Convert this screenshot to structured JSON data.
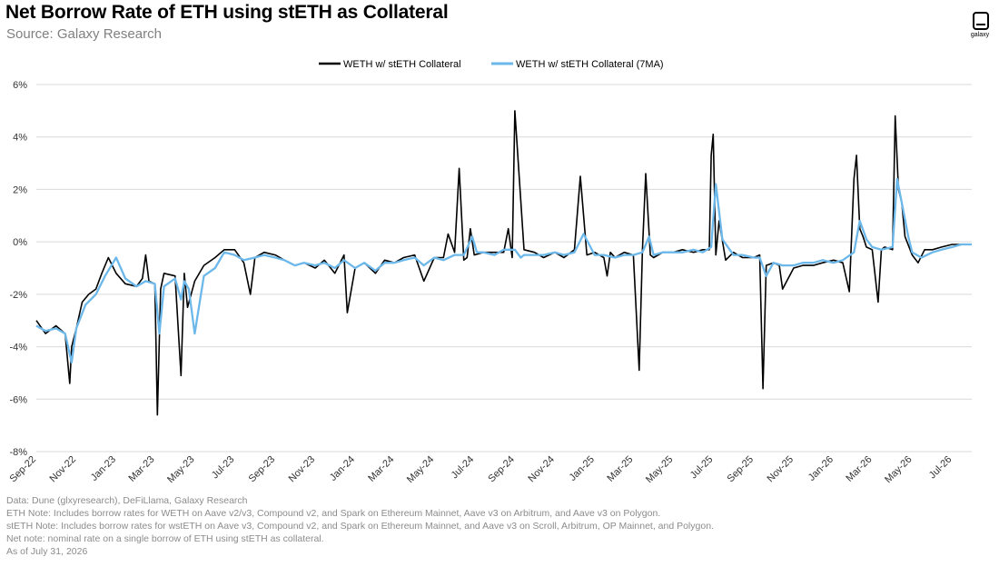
{
  "header": {
    "title": "Net Borrow Rate of ETH using stETH as Collateral",
    "subtitle": "Source: Galaxy Research",
    "logo_text": "galaxy"
  },
  "notes": [
    "Data: Dune (glxyresearch), DeFiLlama, Galaxy Research",
    "ETH Note: Includes borrow rates for WETH on Aave v2/v3, Compound v2, and Spark on Ethereum Mainnet, Aave v3 on Arbitrum, and Aave v3 on Polygon.",
    "stETH Note: Includes  borrow rates for wstETH on Aave v3, Compound v2, and  Spark on Ethereum Mainnet, and Aave v3 on Scroll, Arbitrum, OP Mainnet, and Polygon.",
    "Net note: nominal rate on a single borrow of ETH using stETH as collateral.",
    "As of July 31, 2026"
  ],
  "colors": {
    "series_raw": "#000000",
    "series_ma": "#6cb8ea",
    "gridline": "#d9d9d9",
    "axis_text": "#333333"
  },
  "chart_data": {
    "type": "line",
    "title": "Net Borrow Rate of ETH using stETH as Collateral",
    "xlabel": "",
    "ylabel": "",
    "ylim": [
      -8,
      6
    ],
    "y_ticks": [
      "6%",
      "4%",
      "2%",
      "0%",
      "-2%",
      "-4%",
      "-6%",
      "-8%"
    ],
    "y_tick_values": [
      6,
      4,
      2,
      0,
      -2,
      -4,
      -6,
      -8
    ],
    "x_range": [
      "2022-09-01",
      "2026-07-31"
    ],
    "x_ticks": [
      "Sep-22",
      "Nov-22",
      "Jan-23",
      "Mar-23",
      "May-23",
      "Jul-23",
      "Sep-23",
      "Nov-23",
      "Jan-24",
      "Mar-24",
      "May-24",
      "Jul-24",
      "Sep-24",
      "Nov-24",
      "Jan-25",
      "Mar-25",
      "May-25",
      "Jul-25",
      "Sep-25",
      "Nov-25",
      "Jan-26",
      "Mar-26",
      "May-26",
      "Jul-26"
    ],
    "x_tick_dates": [
      "2022-09-01",
      "2022-11-01",
      "2023-01-01",
      "2023-03-01",
      "2023-05-01",
      "2023-07-01",
      "2023-09-01",
      "2023-11-01",
      "2024-01-01",
      "2024-03-01",
      "2024-05-01",
      "2024-07-01",
      "2024-09-01",
      "2024-11-01",
      "2025-01-01",
      "2025-03-01",
      "2025-05-01",
      "2025-07-01",
      "2025-09-01",
      "2025-11-01",
      "2026-01-01",
      "2026-03-01",
      "2026-05-01",
      "2026-07-01"
    ],
    "grid": true,
    "legend_position": "top-center",
    "series": [
      {
        "name": "WETH w/ stETH Collateral",
        "x": [
          "2022-09-01",
          "2022-09-15",
          "2022-10-01",
          "2022-10-15",
          "2022-10-22",
          "2022-10-25",
          "2022-11-01",
          "2022-11-10",
          "2022-11-20",
          "2022-12-01",
          "2022-12-10",
          "2022-12-20",
          "2023-01-01",
          "2023-01-15",
          "2023-02-01",
          "2023-02-10",
          "2023-02-15",
          "2023-02-20",
          "2023-03-01",
          "2023-03-05",
          "2023-03-10",
          "2023-03-15",
          "2023-04-01",
          "2023-04-10",
          "2023-04-15",
          "2023-04-20",
          "2023-05-01",
          "2023-05-15",
          "2023-06-01",
          "2023-06-15",
          "2023-07-01",
          "2023-07-15",
          "2023-07-25",
          "2023-08-01",
          "2023-08-15",
          "2023-09-01",
          "2023-09-15",
          "2023-10-01",
          "2023-10-15",
          "2023-11-01",
          "2023-11-15",
          "2023-12-01",
          "2023-12-15",
          "2023-12-20",
          "2024-01-01",
          "2024-01-15",
          "2024-02-01",
          "2024-02-15",
          "2024-03-01",
          "2024-03-15",
          "2024-04-01",
          "2024-04-15",
          "2024-05-01",
          "2024-05-15",
          "2024-05-22",
          "2024-06-01",
          "2024-06-08",
          "2024-06-15",
          "2024-06-20",
          "2024-06-25",
          "2024-07-01",
          "2024-07-15",
          "2024-08-01",
          "2024-08-15",
          "2024-08-22",
          "2024-08-28",
          "2024-09-01",
          "2024-09-15",
          "2024-10-01",
          "2024-10-15",
          "2024-11-01",
          "2024-11-15",
          "2024-12-01",
          "2024-12-10",
          "2024-12-20",
          "2025-01-01",
          "2025-01-15",
          "2025-01-20",
          "2025-01-25",
          "2025-02-01",
          "2025-02-15",
          "2025-03-01",
          "2025-03-10",
          "2025-03-15",
          "2025-03-20",
          "2025-03-27",
          "2025-04-01",
          "2025-04-15",
          "2025-05-01",
          "2025-05-15",
          "2025-06-01",
          "2025-06-15",
          "2025-06-25",
          "2025-06-28",
          "2025-07-01",
          "2025-07-05",
          "2025-07-10",
          "2025-07-20",
          "2025-08-01",
          "2025-08-15",
          "2025-09-01",
          "2025-09-10",
          "2025-09-15",
          "2025-09-20",
          "2025-10-01",
          "2025-10-10",
          "2025-10-15",
          "2025-11-01",
          "2025-11-15",
          "2025-12-01",
          "2025-12-15",
          "2026-01-01",
          "2026-01-15",
          "2026-01-25",
          "2026-02-01",
          "2026-02-05",
          "2026-02-10",
          "2026-02-15",
          "2026-02-20",
          "2026-03-01",
          "2026-03-10",
          "2026-03-15",
          "2026-03-20",
          "2026-04-01",
          "2026-04-05",
          "2026-04-10",
          "2026-04-15",
          "2026-04-20",
          "2026-05-01",
          "2026-05-10",
          "2026-05-20",
          "2026-06-01",
          "2026-06-15",
          "2026-07-01",
          "2026-07-15",
          "2026-07-31"
        ],
        "y": [
          -3.0,
          -3.5,
          -3.2,
          -3.5,
          -5.4,
          -4.0,
          -3.3,
          -2.3,
          -2.0,
          -1.8,
          -1.2,
          -0.6,
          -1.2,
          -1.6,
          -1.7,
          -1.4,
          -0.5,
          -1.5,
          -1.6,
          -6.6,
          -1.8,
          -1.2,
          -1.3,
          -5.1,
          -1.2,
          -2.5,
          -1.5,
          -0.9,
          -0.6,
          -0.3,
          -0.3,
          -0.8,
          -2.0,
          -0.6,
          -0.4,
          -0.5,
          -0.7,
          -0.9,
          -0.8,
          -1.0,
          -0.7,
          -1.2,
          -0.5,
          -2.7,
          -1.0,
          -0.8,
          -1.2,
          -0.7,
          -0.8,
          -0.6,
          -0.5,
          -1.5,
          -0.6,
          -0.6,
          0.3,
          -0.4,
          2.8,
          -0.7,
          -0.6,
          0.5,
          -0.5,
          -0.4,
          -0.4,
          -0.4,
          0.5,
          -0.6,
          5.0,
          -0.3,
          -0.4,
          -0.6,
          -0.4,
          -0.6,
          -0.3,
          2.5,
          -0.5,
          -0.4,
          -0.6,
          -1.3,
          -0.4,
          -0.6,
          -0.4,
          -0.5,
          -4.9,
          -0.3,
          2.6,
          -0.5,
          -0.6,
          -0.4,
          -0.4,
          -0.3,
          -0.4,
          -0.3,
          -0.3,
          3.3,
          4.1,
          -0.5,
          0.8,
          -0.7,
          -0.4,
          -0.6,
          -0.6,
          -0.5,
          -5.6,
          -0.9,
          -0.8,
          -0.9,
          -1.8,
          -1.0,
          -0.9,
          -0.9,
          -0.8,
          -0.7,
          -0.8,
          -1.9,
          2.4,
          3.3,
          0.5,
          0.2,
          -0.2,
          -0.3,
          -2.3,
          -0.3,
          -0.2,
          -0.3,
          4.8,
          2.0,
          1.5,
          0.2,
          -0.5,
          -0.8,
          -0.3,
          -0.3,
          -0.2,
          -0.1,
          -0.1,
          -0.1
        ]
      },
      {
        "name": "WETH w/ stETH Collateral (7MA)",
        "x": [
          "2022-09-01",
          "2022-09-15",
          "2022-10-01",
          "2022-10-15",
          "2022-10-25",
          "2022-11-01",
          "2022-11-15",
          "2022-12-01",
          "2022-12-15",
          "2023-01-01",
          "2023-01-15",
          "2023-02-01",
          "2023-02-15",
          "2023-03-01",
          "2023-03-08",
          "2023-03-15",
          "2023-04-01",
          "2023-04-10",
          "2023-04-15",
          "2023-04-22",
          "2023-05-01",
          "2023-05-15",
          "2023-06-01",
          "2023-06-15",
          "2023-07-01",
          "2023-07-15",
          "2023-08-01",
          "2023-08-15",
          "2023-09-01",
          "2023-09-15",
          "2023-10-01",
          "2023-10-15",
          "2023-11-01",
          "2023-11-15",
          "2023-12-01",
          "2023-12-15",
          "2024-01-01",
          "2024-01-15",
          "2024-02-01",
          "2024-02-15",
          "2024-03-01",
          "2024-03-15",
          "2024-04-01",
          "2024-04-15",
          "2024-05-01",
          "2024-05-15",
          "2024-06-01",
          "2024-06-15",
          "2024-06-28",
          "2024-07-05",
          "2024-07-15",
          "2024-08-01",
          "2024-08-15",
          "2024-09-01",
          "2024-09-10",
          "2024-09-15",
          "2024-10-01",
          "2024-10-15",
          "2024-11-01",
          "2024-11-15",
          "2024-12-01",
          "2024-12-15",
          "2025-01-01",
          "2025-01-15",
          "2025-02-01",
          "2025-02-15",
          "2025-03-01",
          "2025-03-15",
          "2025-03-25",
          "2025-04-01",
          "2025-04-15",
          "2025-05-01",
          "2025-05-15",
          "2025-06-01",
          "2025-06-15",
          "2025-06-28",
          "2025-07-05",
          "2025-07-15",
          "2025-08-01",
          "2025-08-15",
          "2025-09-01",
          "2025-09-10",
          "2025-09-20",
          "2025-10-01",
          "2025-10-15",
          "2025-11-01",
          "2025-11-15",
          "2025-12-01",
          "2025-12-15",
          "2026-01-01",
          "2026-01-15",
          "2026-02-01",
          "2026-02-10",
          "2026-02-20",
          "2026-03-01",
          "2026-03-15",
          "2026-04-01",
          "2026-04-08",
          "2026-04-15",
          "2026-04-25",
          "2026-05-01",
          "2026-05-15",
          "2026-06-01",
          "2026-06-15",
          "2026-07-01",
          "2026-07-15",
          "2026-07-31"
        ],
        "y": [
          -3.2,
          -3.4,
          -3.3,
          -3.5,
          -4.6,
          -3.3,
          -2.4,
          -2.0,
          -1.3,
          -0.6,
          -1.4,
          -1.7,
          -1.5,
          -1.6,
          -3.5,
          -1.7,
          -1.4,
          -2.2,
          -1.5,
          -1.8,
          -3.5,
          -1.3,
          -1.0,
          -0.4,
          -0.5,
          -0.7,
          -0.6,
          -0.5,
          -0.6,
          -0.7,
          -0.9,
          -0.8,
          -0.9,
          -0.8,
          -1.0,
          -0.7,
          -1.0,
          -0.8,
          -1.1,
          -0.8,
          -0.8,
          -0.7,
          -0.6,
          -0.9,
          -0.6,
          -0.7,
          -0.5,
          -0.5,
          0.2,
          -0.4,
          -0.4,
          -0.5,
          -0.3,
          -0.3,
          -0.6,
          -0.5,
          -0.5,
          -0.5,
          -0.4,
          -0.5,
          -0.4,
          0.3,
          -0.5,
          -0.5,
          -0.6,
          -0.5,
          -0.5,
          -0.4,
          0.2,
          -0.5,
          -0.4,
          -0.4,
          -0.4,
          -0.3,
          -0.4,
          -0.2,
          2.2,
          0.1,
          -0.5,
          -0.5,
          -0.6,
          -0.6,
          -1.3,
          -0.8,
          -0.9,
          -0.9,
          -0.8,
          -0.8,
          -0.7,
          -0.8,
          -0.7,
          -0.4,
          0.8,
          0.1,
          -0.2,
          -0.3,
          -0.2,
          2.4,
          1.5,
          0.2,
          -0.4,
          -0.6,
          -0.4,
          -0.3,
          -0.2,
          -0.1,
          -0.1
        ]
      }
    ]
  }
}
